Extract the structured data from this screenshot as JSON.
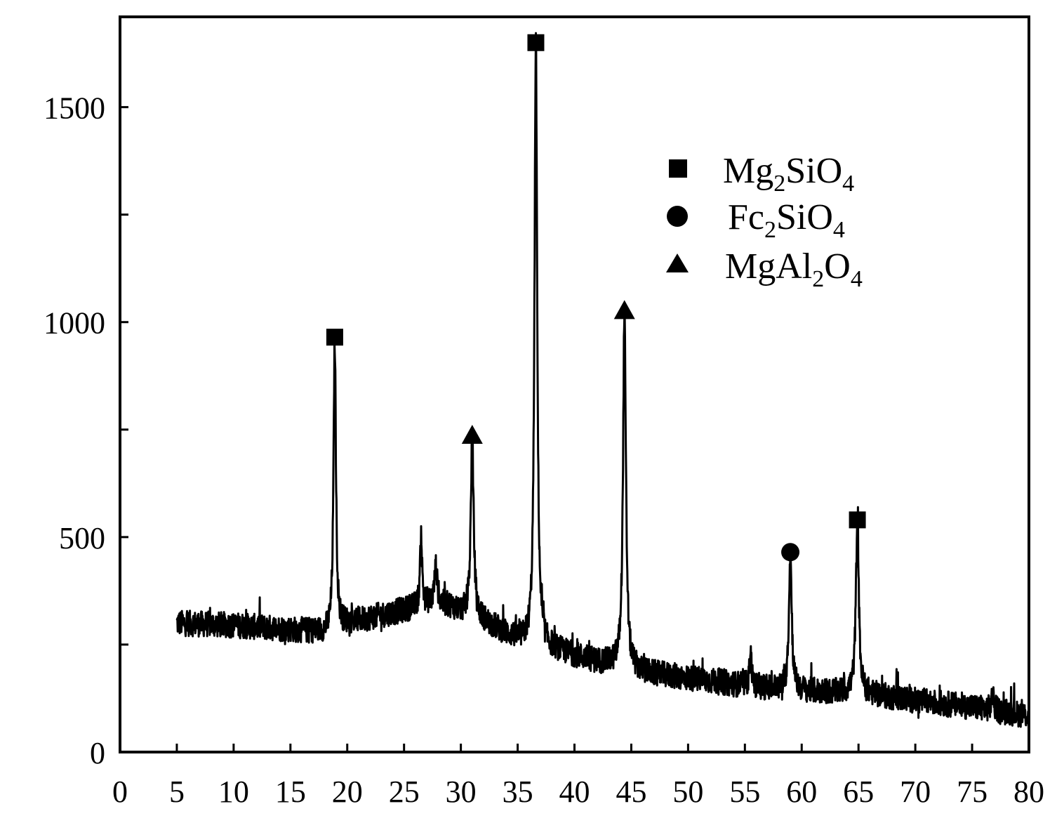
{
  "chart_data": {
    "type": "line",
    "title": "",
    "xlabel": "",
    "ylabel": "",
    "xlim": [
      0,
      80
    ],
    "ylim": [
      0,
      1710
    ],
    "x_ticks": [
      0,
      5,
      10,
      15,
      20,
      25,
      30,
      35,
      40,
      45,
      50,
      55,
      60,
      65,
      70,
      75,
      80
    ],
    "x_tick_labels": [
      "0",
      "5",
      "10",
      "15",
      "20",
      "25",
      "30",
      "35",
      "40",
      "45",
      "50",
      "55",
      "60",
      "65",
      "70",
      "75",
      "80"
    ],
    "y_ticks": [
      0,
      250,
      500,
      750,
      1000,
      1250,
      1500
    ],
    "y_tick_labels": [
      "0",
      "",
      "500",
      "",
      "1000",
      "",
      "1500"
    ],
    "grid": false,
    "legend_position": "top-right",
    "series": [
      {
        "color": "#000000",
        "baseline": [
          [
            5,
            300
          ],
          [
            10,
            295
          ],
          [
            15,
            285
          ],
          [
            18.5,
            278
          ],
          [
            20,
            300
          ],
          [
            25,
            330
          ],
          [
            27,
            345
          ],
          [
            29,
            340
          ],
          [
            30,
            325
          ],
          [
            32,
            305
          ],
          [
            34,
            275
          ],
          [
            35.5,
            255
          ],
          [
            38,
            240
          ],
          [
            40,
            225
          ],
          [
            42,
            210
          ],
          [
            44,
            200
          ],
          [
            46,
            185
          ],
          [
            50,
            172
          ],
          [
            54,
            158
          ],
          [
            58,
            146
          ],
          [
            62,
            140
          ],
          [
            65,
            138
          ],
          [
            70,
            120
          ],
          [
            75,
            105
          ],
          [
            80,
            85
          ]
        ],
        "peaks": [
          {
            "x": 18.9,
            "height": 955,
            "width": 0.25
          },
          {
            "x": 26.5,
            "height": 510,
            "width": 0.2
          },
          {
            "x": 27.8,
            "height": 430,
            "width": 0.3
          },
          {
            "x": 31.0,
            "height": 735,
            "width": 0.3
          },
          {
            "x": 36.6,
            "height": 1650,
            "width": 0.28
          },
          {
            "x": 44.4,
            "height": 1020,
            "width": 0.3
          },
          {
            "x": 55.5,
            "height": 240,
            "width": 0.2
          },
          {
            "x": 59.0,
            "height": 460,
            "width": 0.3
          },
          {
            "x": 64.9,
            "height": 540,
            "width": 0.3
          },
          {
            "x": 76.8,
            "height": 130,
            "width": 0.25
          }
        ],
        "noise": 30
      }
    ],
    "markers": [
      {
        "shape": "square",
        "x": 18.9,
        "y": 965
      },
      {
        "shape": "triangle",
        "x": 31.0,
        "y": 735
      },
      {
        "shape": "square",
        "x": 36.6,
        "y": 1650
      },
      {
        "shape": "triangle",
        "x": 44.4,
        "y": 1025
      },
      {
        "shape": "circle",
        "x": 59.0,
        "y": 465
      },
      {
        "shape": "square",
        "x": 64.9,
        "y": 540
      }
    ],
    "legend": [
      {
        "shape": "square",
        "main1": "Mg",
        "sub1": "2",
        "main2": "SiO",
        "sub2": "4"
      },
      {
        "shape": "circle",
        "main1": "Fc",
        "sub1": "2",
        "main2": "SiO",
        "sub2": "4"
      },
      {
        "shape": "triangle",
        "main1": "MgAl",
        "sub1": "2",
        "main2": "O",
        "sub2": "4"
      }
    ]
  }
}
